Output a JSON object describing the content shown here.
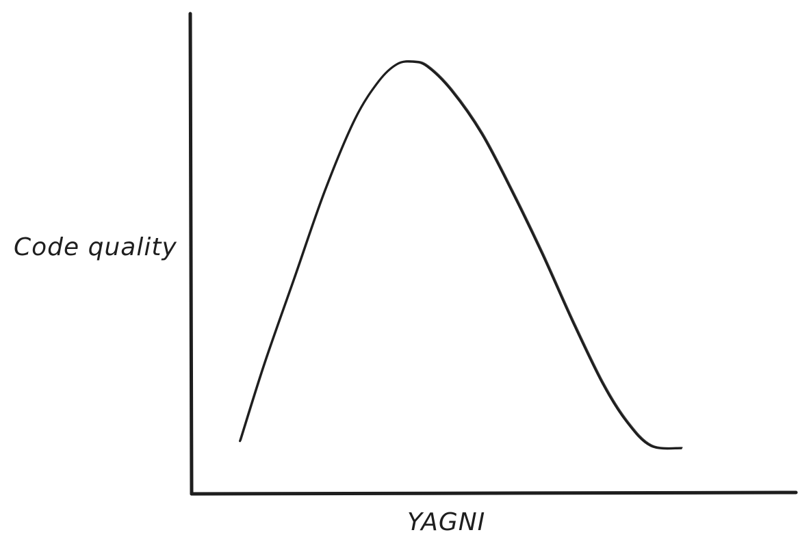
{
  "chart_data": {
    "type": "line",
    "title": "",
    "xlabel": "YAGNI",
    "ylabel": "Code quality",
    "xlim": [
      0,
      100
    ],
    "ylim": [
      0,
      100
    ],
    "grid": false,
    "series": [
      {
        "x": [
          8,
          12,
          17,
          22,
          27,
          31,
          34,
          36.6,
          39,
          43,
          48,
          53,
          58,
          63,
          68,
          72,
          76,
          81
        ],
        "y": [
          11,
          27,
          45,
          63,
          78,
          86,
          89.5,
          90,
          89,
          84,
          75,
          63,
          50,
          36,
          23,
          15,
          10,
          9.5
        ]
      }
    ]
  }
}
